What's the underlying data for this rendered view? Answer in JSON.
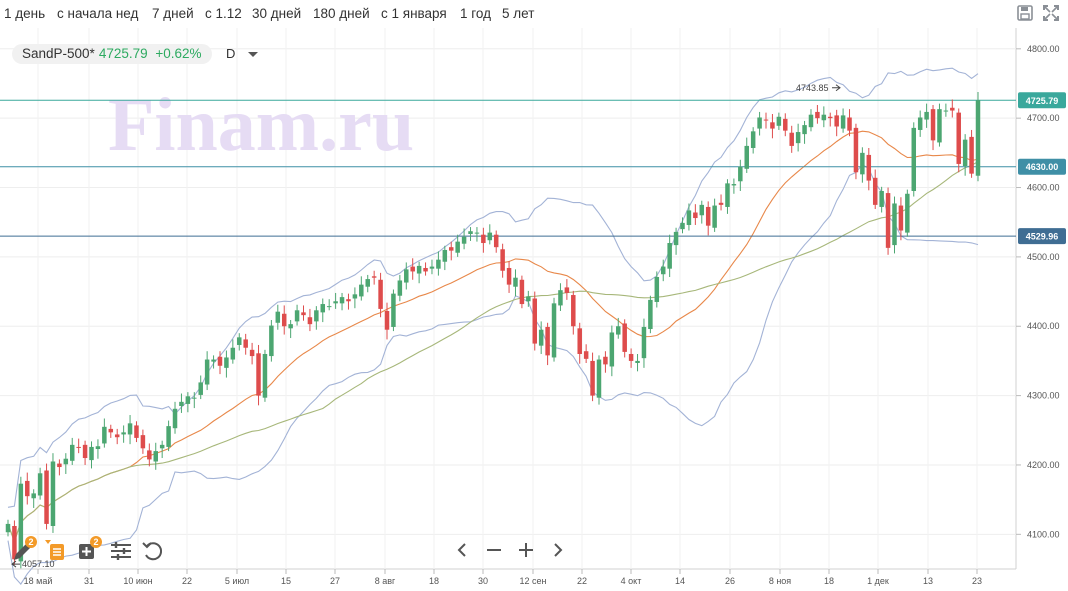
{
  "toolbar": {
    "periods": [
      "1 день",
      "с начала нед",
      "7 дней",
      "с 1.12",
      "30 дней",
      "180 дней",
      "с 1 января",
      "1 год",
      "5 лет"
    ],
    "save_icon": "save-icon",
    "fullscreen_icon": "fullscreen-icon"
  },
  "instrument": {
    "symbol": "SandP-500*",
    "price": "4725.79",
    "change": "+0.62%",
    "period": "D"
  },
  "watermark": "Finam.ru",
  "colors": {
    "up": "#4ca671",
    "down": "#de4c4c",
    "fast_ma": "#e8884a",
    "slow_ma": "#a7b77a",
    "bollinger": "#a3b3d6",
    "level_line": "#3f8a99",
    "watermark": "#e6dcf4"
  },
  "bottom_tools": {
    "draw_badge": "2",
    "indicators_badge": "2"
  },
  "chart_data": {
    "type": "candlestick",
    "ylim": [
      4050,
      4830
    ],
    "y_ticks": [
      "4100.00",
      "4200.00",
      "4300.00",
      "4400.00",
      "4500.00",
      "4600.00",
      "4700.00",
      "4800.00"
    ],
    "x_ticks": [
      "18 май",
      "31",
      "10 июн",
      "22",
      "5 июл",
      "15",
      "27",
      "8 авг",
      "18",
      "30",
      "12 сен",
      "22",
      "4 окт",
      "14",
      "26",
      "8 ноя",
      "18",
      "1 дек",
      "13",
      "23"
    ],
    "levels": [
      {
        "value": 4725.79,
        "label": "4725.79",
        "color": "#3aa89c"
      },
      {
        "value": 4630.0,
        "label": "4630.00",
        "color": "#3f8fa6"
      },
      {
        "value": 4529.96,
        "label": "4529.96",
        "color": "#3f6d93"
      }
    ],
    "annotations": [
      {
        "text": "4743.85",
        "value": 4743.85
      },
      {
        "text": "4057.10",
        "value": 4057.1
      }
    ],
    "closes": [
      4115,
      4064,
      4173,
      4155,
      4159,
      4188,
      4115,
      4205,
      4197,
      4209,
      4229,
      4225,
      4210,
      4226,
      4227,
      4255,
      4247,
      4240,
      4247,
      4260,
      4239,
      4224,
      4208,
      4220,
      4229,
      4256,
      4281,
      4291,
      4299,
      4297,
      4319,
      4352,
      4352,
      4343,
      4355,
      4369,
      4384,
      4369,
      4357,
      4300,
      4360,
      4401,
      4421,
      4400,
      4403,
      4423,
      4416,
      4403,
      4423,
      4432,
      4429,
      4436,
      4442,
      4436,
      4446,
      4460,
      4468,
      4470,
      4425,
      4395,
      4447,
      4466,
      4482,
      4479,
      4487,
      4479,
      4486,
      4496,
      4510,
      4509,
      4522,
      4529,
      4537,
      4535,
      4520,
      4535,
      4514,
      4480,
      4460,
      4470,
      4432,
      4443,
      4375,
      4395,
      4358,
      4433,
      4452,
      4448,
      4400,
      4360,
      4353,
      4300,
      4352,
      4345,
      4391,
      4400,
      4363,
      4350,
      4350,
      4399,
      4438,
      4471,
      4486,
      4520,
      4536,
      4549,
      4567,
      4556,
      4575,
      4545,
      4574,
      4575,
      4606,
      4605,
      4630,
      4660,
      4681,
      4701,
      4697,
      4685,
      4702,
      4682,
      4660,
      4680,
      4690,
      4705,
      4700,
      4705,
      4700,
      4688,
      4704,
      4682,
      4622,
      4650,
      4610,
      4575,
      4595,
      4513,
      4577,
      4538,
      4591,
      4686,
      4701,
      4709,
      4668,
      4713,
      4711,
      4711,
      4634,
      4669,
      4620,
      4725.79
    ]
  }
}
